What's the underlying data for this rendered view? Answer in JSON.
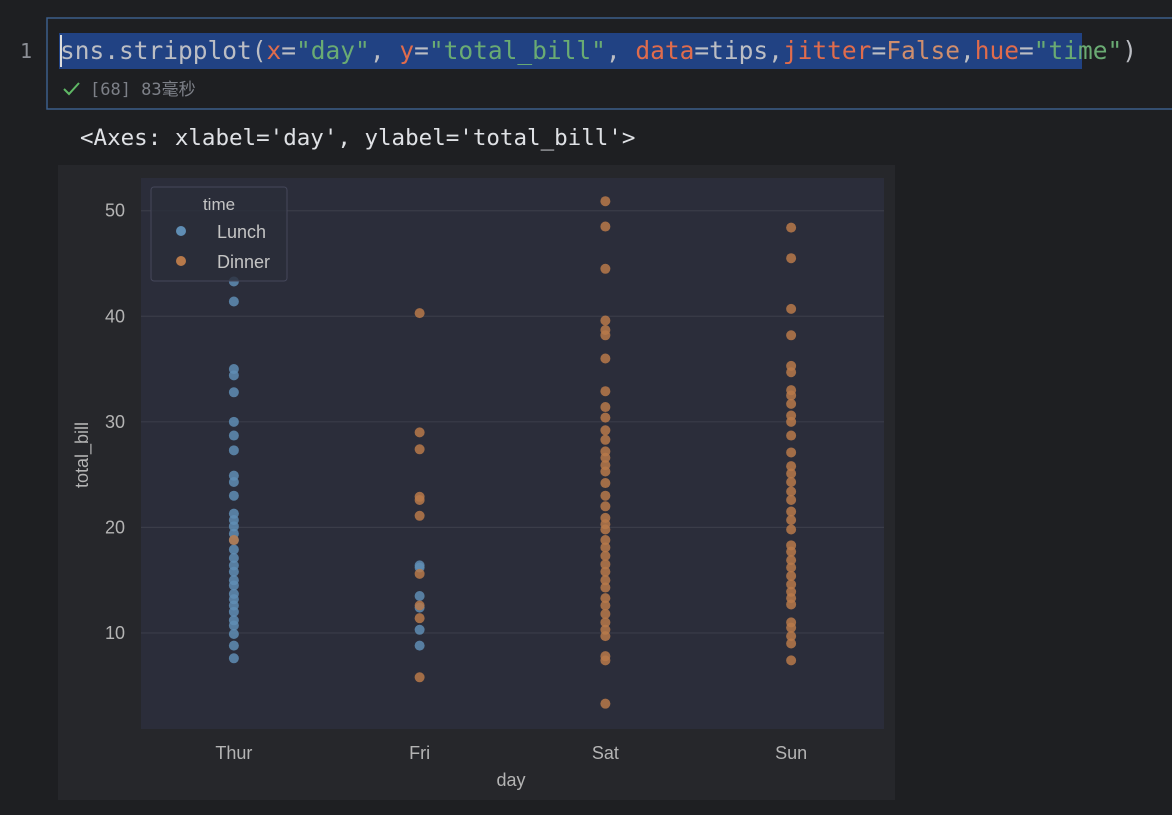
{
  "cell": {
    "line_number": "1",
    "code": [
      "sns.stripplot(",
      "x",
      "=",
      "\"day\"",
      ", ",
      "y",
      "=",
      "\"total_bill\"",
      ", ",
      "data",
      "=tips,",
      "jitter",
      "=",
      "False",
      ",",
      "hue",
      "=",
      "\"time\"",
      ")"
    ],
    "status": "[68] 83毫秒"
  },
  "output": {
    "text": "<Axes: xlabel='day', ylabel='total_bill'>"
  },
  "chart_data": {
    "type": "scatter",
    "xlabel": "day",
    "ylabel": "total_bill",
    "categories": [
      "Thur",
      "Fri",
      "Sat",
      "Sun"
    ],
    "ylim": [
      0.9,
      53.1
    ],
    "yticks": [
      10,
      20,
      30,
      40,
      50
    ],
    "grid": true,
    "legend": {
      "title": "time",
      "position": "upper left"
    },
    "series": [
      {
        "name": "Lunch",
        "color": "#5f8db4",
        "x": [
          "Thur",
          "Thur",
          "Thur",
          "Thur",
          "Thur",
          "Thur",
          "Thur",
          "Thur",
          "Thur",
          "Thur",
          "Thur",
          "Thur",
          "Thur",
          "Thur",
          "Thur",
          "Thur",
          "Thur",
          "Thur",
          "Thur",
          "Thur",
          "Thur",
          "Thur",
          "Thur",
          "Thur",
          "Thur",
          "Thur",
          "Thur",
          "Thur",
          "Thur",
          "Thur",
          "Thur",
          "Fri",
          "Fri",
          "Fri",
          "Fri",
          "Fri",
          "Fri"
        ],
        "values": [
          43.3,
          41.4,
          35.0,
          34.4,
          32.8,
          30.0,
          28.7,
          27.3,
          24.9,
          24.3,
          23.0,
          21.3,
          20.7,
          20.1,
          19.4,
          18.8,
          17.9,
          17.1,
          16.4,
          15.8,
          15.0,
          14.5,
          13.7,
          13.2,
          12.6,
          12.0,
          11.2,
          10.7,
          9.9,
          8.8,
          7.6,
          16.4,
          16.2,
          13.5,
          12.4,
          10.3,
          8.8
        ]
      },
      {
        "name": "Dinner",
        "color": "#b7794a",
        "x": [
          "Thur",
          "Fri",
          "Fri",
          "Fri",
          "Fri",
          "Fri",
          "Fri",
          "Fri",
          "Fri",
          "Fri",
          "Fri",
          "Sat",
          "Sat",
          "Sat",
          "Sat",
          "Sat",
          "Sat",
          "Sat",
          "Sat",
          "Sat",
          "Sat",
          "Sat",
          "Sat",
          "Sat",
          "Sat",
          "Sat",
          "Sat",
          "Sat",
          "Sat",
          "Sat",
          "Sat",
          "Sat",
          "Sat",
          "Sat",
          "Sat",
          "Sat",
          "Sat",
          "Sat",
          "Sat",
          "Sat",
          "Sat",
          "Sat",
          "Sat",
          "Sat",
          "Sat",
          "Sat",
          "Sat",
          "Sat",
          "Sat",
          "Sun",
          "Sun",
          "Sun",
          "Sun",
          "Sun",
          "Sun",
          "Sun",
          "Sun",
          "Sun",
          "Sun",
          "Sun",
          "Sun",
          "Sun",
          "Sun",
          "Sun",
          "Sun",
          "Sun",
          "Sun",
          "Sun",
          "Sun",
          "Sun",
          "Sun",
          "Sun",
          "Sun",
          "Sun",
          "Sun",
          "Sun",
          "Sun",
          "Sun",
          "Sun",
          "Sun",
          "Sun",
          "Sun",
          "Sun",
          "Sun"
        ],
        "values": [
          18.8,
          40.3,
          29.0,
          27.4,
          22.9,
          22.6,
          21.1,
          15.6,
          12.6,
          11.4,
          5.8,
          50.9,
          48.5,
          44.5,
          39.6,
          38.7,
          38.2,
          36.0,
          32.9,
          31.4,
          30.4,
          29.2,
          28.3,
          27.2,
          26.6,
          25.9,
          25.3,
          24.2,
          23.0,
          22.0,
          20.9,
          20.3,
          19.8,
          18.8,
          18.1,
          17.3,
          16.5,
          15.8,
          15.0,
          14.3,
          13.3,
          12.6,
          11.8,
          11.0,
          10.3,
          9.7,
          7.8,
          7.4,
          3.3,
          48.4,
          45.5,
          40.7,
          38.2,
          35.3,
          34.7,
          33.0,
          32.5,
          31.7,
          30.6,
          30.0,
          28.7,
          27.1,
          25.8,
          25.1,
          24.3,
          23.4,
          22.6,
          21.5,
          20.7,
          19.8,
          18.3,
          17.7,
          16.9,
          16.2,
          15.4,
          14.6,
          13.9,
          13.3,
          12.7,
          11.0,
          10.5,
          9.7,
          9.0,
          7.4
        ]
      }
    ]
  }
}
